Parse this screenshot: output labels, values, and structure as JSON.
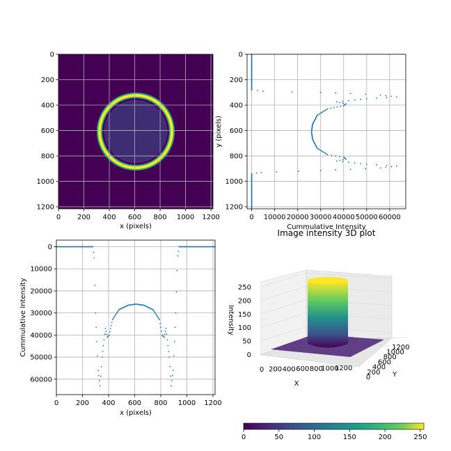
{
  "chart_data": [
    {
      "type": "heatmap",
      "colormap": "viridis",
      "description_of_values": "ring of high intensity centered near (600, 600)",
      "xlabel": "x (pixels)",
      "ylabel": "",
      "xlim": [
        0,
        1216
      ],
      "ylim": [
        1216,
        0
      ],
      "xticks": [
        0,
        200,
        400,
        600,
        800,
        1000,
        1200
      ],
      "yticks": [
        0,
        200,
        400,
        600,
        800,
        1000,
        1200
      ],
      "ring": {
        "center_x": 608,
        "center_y": 608,
        "radius_outer": 280,
        "radius_inner": 250,
        "peak": 255
      },
      "grid": true
    },
    {
      "type": "scatter",
      "xlabel": "Cummulative Intensity",
      "ylabel": "y (pixels)",
      "xlim": [
        -2000,
        67000
      ],
      "ylim": [
        1216,
        0
      ],
      "xticks": [
        0,
        10000,
        20000,
        30000,
        40000,
        50000,
        60000
      ],
      "yticks": [
        0,
        200,
        400,
        600,
        800,
        1000,
        1200
      ],
      "profile_points": [
        [
          0,
          0
        ],
        [
          280,
          0
        ],
        [
          290,
          5000
        ],
        [
          300,
          30000
        ],
        [
          320,
          56000
        ],
        [
          335,
          63000
        ],
        [
          350,
          50000
        ],
        [
          375,
          37000
        ],
        [
          390,
          41000
        ],
        [
          405,
          40000
        ],
        [
          430,
          33000
        ],
        [
          480,
          28500
        ],
        [
          550,
          26500
        ],
        [
          608,
          26000
        ],
        [
          670,
          26500
        ],
        [
          740,
          28500
        ],
        [
          790,
          33000
        ],
        [
          810,
          40000
        ],
        [
          825,
          41000
        ],
        [
          840,
          37000
        ],
        [
          865,
          50000
        ],
        [
          880,
          63000
        ],
        [
          895,
          56000
        ],
        [
          915,
          30000
        ],
        [
          928,
          5000
        ],
        [
          940,
          0
        ],
        [
          1216,
          0
        ]
      ],
      "grid": true
    },
    {
      "type": "scatter",
      "xlabel": "x (pixels)",
      "ylabel": "Cummulative Intensity",
      "xlim": [
        0,
        1216
      ],
      "ylim": [
        67000,
        -3000
      ],
      "xticks": [
        0,
        200,
        400,
        600,
        800,
        1000,
        1200
      ],
      "yticks": [
        0,
        10000,
        20000,
        30000,
        40000,
        50000,
        60000
      ],
      "grid": true
    },
    {
      "type": "surface3d",
      "title": "Image intensity 3D plot",
      "xlabel": "X",
      "ylabel": "Y",
      "zlabel": "Intensity",
      "xticks": [
        0,
        200,
        400,
        600,
        800,
        1000,
        1200
      ],
      "yticks": [
        0,
        200,
        400,
        600,
        800,
        1000,
        1200
      ],
      "zticks": [
        0,
        50,
        100,
        150,
        200,
        250
      ],
      "colorbar": {
        "colormap": "viridis",
        "ticks": [
          0,
          50,
          100,
          150,
          200,
          250
        ],
        "range": [
          0,
          255
        ]
      }
    }
  ],
  "colors": {
    "marker": "#1f77b4",
    "grid": "#b0b0b0"
  }
}
